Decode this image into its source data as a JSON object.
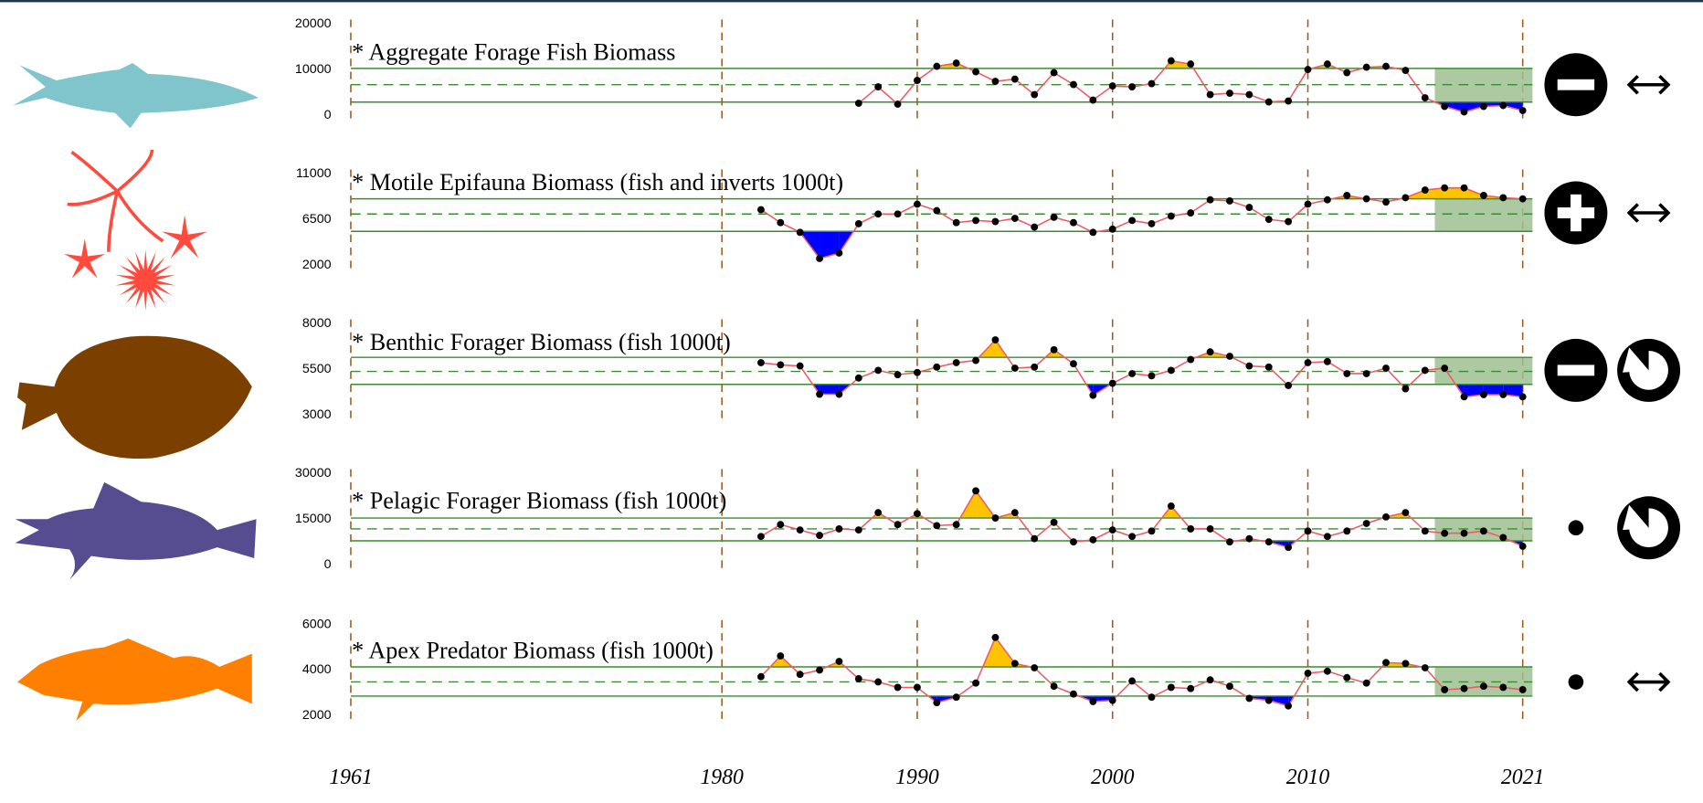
{
  "x_axis": {
    "xlim": [
      1961,
      2021
    ],
    "xticks": [
      1961,
      1980,
      1990,
      2000,
      2010,
      2021
    ],
    "highlight": [
      2016.5,
      2021.5
    ]
  },
  "chart_data": [
    {
      "type": "line",
      "title": "* Aggregate Forage Fish Biomass",
      "color": "#f05a64",
      "x": [
        1987,
        1988,
        1989,
        1990,
        1991,
        1992,
        1993,
        1994,
        1995,
        1996,
        1997,
        1998,
        1999,
        2000,
        2001,
        2002,
        2003,
        2004,
        2005,
        2006,
        2007,
        2008,
        2009,
        2010,
        2011,
        2012,
        2013,
        2014,
        2015,
        2016,
        2017,
        2018,
        2019,
        2020,
        2021
      ],
      "values": [
        2600,
        6200,
        2400,
        7600,
        10700,
        11400,
        9500,
        7400,
        7900,
        4500,
        9300,
        6700,
        3300,
        6400,
        6200,
        6900,
        11900,
        11200,
        4500,
        4800,
        4500,
        2900,
        3100,
        10000,
        11200,
        9300,
        10500,
        10700,
        9800,
        3800,
        1900,
        700,
        1900,
        2100,
        1000
      ],
      "mean": 6670,
      "band": [
        2860,
        10240
      ],
      "ylim": [
        0,
        20000
      ],
      "yticks": [
        0,
        10000,
        20000
      ]
    },
    {
      "type": "line",
      "title": "* Motile Epifauna Biomass (fish and inverts 1000t)",
      "color": "#f05a64",
      "x": [
        1982,
        1983,
        1984,
        1985,
        1986,
        1987,
        1988,
        1989,
        1990,
        1991,
        1992,
        1993,
        1994,
        1995,
        1996,
        1997,
        1998,
        1999,
        2000,
        2001,
        2002,
        2003,
        2004,
        2005,
        2006,
        2007,
        2008,
        2009,
        2010,
        2011,
        2012,
        2013,
        2014,
        2015,
        2016,
        2017,
        2018,
        2019,
        2020,
        2021
      ],
      "values": [
        7460,
        6180,
        5220,
        2640,
        3180,
        6070,
        7030,
        7030,
        8000,
        7360,
        6180,
        6390,
        6280,
        6600,
        5740,
        6710,
        6180,
        5220,
        5540,
        6390,
        6070,
        6820,
        7140,
        8430,
        8320,
        7680,
        6500,
        6280,
        8000,
        8430,
        8860,
        8530,
        8210,
        8640,
        9390,
        9610,
        9610,
        8860,
        8640,
        8530
      ],
      "mean": 7030,
      "band": [
        5320,
        8530
      ],
      "ylim": [
        2000,
        11000
      ],
      "yticks": [
        2000,
        6500,
        11000
      ]
    },
    {
      "type": "line",
      "title": "* Benthic Forager Biomass (fish 1000t)",
      "color": "#f05a64",
      "x": [
        1982,
        1983,
        1984,
        1985,
        1986,
        1987,
        1988,
        1989,
        1990,
        1991,
        1992,
        1993,
        1994,
        1995,
        1996,
        1997,
        1998,
        1999,
        2000,
        2001,
        2002,
        2003,
        2004,
        2005,
        2006,
        2007,
        2008,
        2009,
        2010,
        2011,
        2012,
        2013,
        2014,
        2015,
        2016,
        2017,
        2018,
        2019,
        2020,
        2021
      ],
      "values": [
        5860,
        5740,
        5680,
        4130,
        4130,
        5020,
        5440,
        5200,
        5320,
        5620,
        5860,
        5980,
        7110,
        5560,
        5620,
        6570,
        5800,
        4070,
        4730,
        5260,
        5140,
        5440,
        6030,
        6450,
        6210,
        5680,
        5620,
        4610,
        5860,
        5920,
        5260,
        5260,
        5560,
        4430,
        5440,
        5560,
        3990,
        4110,
        4110,
        3990
      ],
      "mean": 5380,
      "band": [
        4670,
        6150
      ],
      "ylim": [
        3000,
        8000
      ],
      "yticks": [
        3000,
        5500,
        8000
      ]
    },
    {
      "type": "line",
      "title": "* Pelagic Forager Biomass (fish 1000t)",
      "color": "#f05a64",
      "x": [
        1982,
        1983,
        1984,
        1985,
        1986,
        1987,
        1988,
        1989,
        1990,
        1991,
        1992,
        1993,
        1994,
        1995,
        1996,
        1997,
        1998,
        1999,
        2000,
        2001,
        2002,
        2003,
        2004,
        2005,
        2006,
        2007,
        2008,
        2009,
        2010,
        2011,
        2012,
        2013,
        2014,
        2015,
        2016,
        2017,
        2018,
        2019,
        2020,
        2021
      ],
      "values": [
        9290,
        13210,
        11430,
        9640,
        11790,
        11430,
        17140,
        13210,
        16790,
        12860,
        13210,
        24290,
        15360,
        17140,
        8570,
        13930,
        7500,
        8210,
        11430,
        9290,
        11070,
        19290,
        11790,
        11790,
        7500,
        8570,
        7500,
        5710,
        11070,
        9290,
        11070,
        13570,
        15710,
        17140,
        11070,
        10360,
        10360,
        11070,
        8930,
        6070
      ],
      "mean": 11790,
      "band": [
        7860,
        15360
      ],
      "ylim": [
        0,
        30000
      ],
      "yticks": [
        0,
        15000,
        30000
      ]
    },
    {
      "type": "line",
      "title": "* Apex Predator Biomass (fish 1000t)",
      "color": "#f05a64",
      "x": [
        1982,
        1983,
        1984,
        1985,
        1986,
        1987,
        1988,
        1989,
        1990,
        1991,
        1992,
        1993,
        1994,
        1995,
        1996,
        1997,
        1998,
        1999,
        2000,
        2001,
        2002,
        2003,
        2004,
        2005,
        2006,
        2007,
        2008,
        2009,
        2010,
        2011,
        2012,
        2013,
        2014,
        2015,
        2016,
        2017,
        2018,
        2019,
        2020,
        2021
      ],
      "values": [
        3710,
        4620,
        3810,
        4000,
        4380,
        3620,
        3480,
        3240,
        3240,
        2570,
        2810,
        3430,
        5430,
        4290,
        4100,
        3290,
        2950,
        2620,
        2670,
        3520,
        2810,
        3240,
        3190,
        3570,
        3290,
        2760,
        2670,
        2430,
        3860,
        3950,
        3670,
        3430,
        4330,
        4290,
        4100,
        3140,
        3190,
        3290,
        3240,
        3140
      ],
      "mean": 3480,
      "band": [
        2860,
        4140
      ],
      "ylim": [
        2000,
        6000
      ],
      "yticks": [
        2000,
        4000,
        6000
      ]
    }
  ]
}
